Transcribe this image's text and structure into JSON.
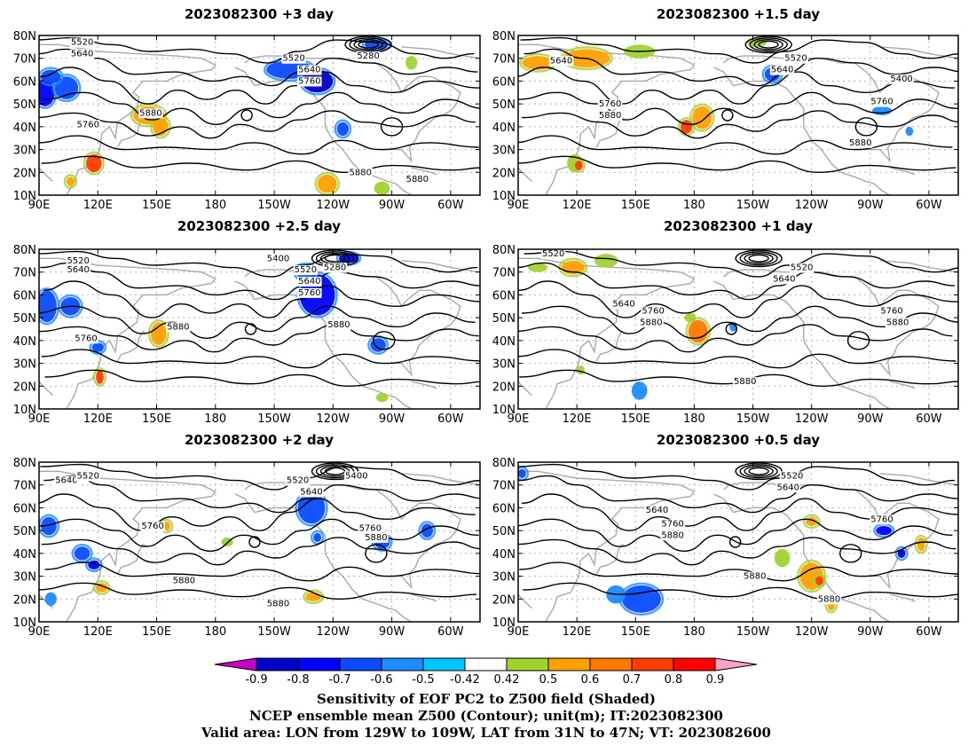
{
  "map_panels": [
    {
      "title": "2023082300  +3 day",
      "contour_labels": [
        {
          "text": "5520",
          "lon": 112,
          "lat": 77
        },
        {
          "text": "5640",
          "lon": 112,
          "lat": 72
        },
        {
          "text": "5280",
          "lon": 258,
          "lat": 71
        },
        {
          "text": "5520",
          "lon": 220,
          "lat": 70
        },
        {
          "text": "5640",
          "lon": 228,
          "lat": 65
        },
        {
          "text": "5760",
          "lon": 228,
          "lat": 60
        },
        {
          "text": "5880",
          "lon": 147,
          "lat": 46
        },
        {
          "text": "5760",
          "lon": 115,
          "lat": 41
        },
        {
          "text": "5880",
          "lon": 254,
          "lat": 20
        },
        {
          "text": "5880",
          "lon": 283,
          "lat": 17
        }
      ],
      "shading": [
        {
          "lon": 93,
          "lat": 55,
          "rx": 5,
          "ry": 6,
          "level": -0.7
        },
        {
          "lon": 104,
          "lat": 57,
          "rx": 6,
          "ry": 5,
          "level": -0.6
        },
        {
          "lon": 96,
          "lat": 62,
          "rx": 5,
          "ry": 3,
          "level": -0.6
        },
        {
          "lon": 146,
          "lat": 45,
          "rx": 8,
          "ry": 4,
          "level": 0.6
        },
        {
          "lon": 152,
          "lat": 40,
          "rx": 4,
          "ry": 4,
          "level": 0.6
        },
        {
          "lon": 118,
          "lat": 24,
          "rx": 4,
          "ry": 4,
          "level": 0.8
        },
        {
          "lon": 106,
          "lat": 16,
          "rx": 2,
          "ry": 2,
          "level": 0.6
        },
        {
          "lon": 218,
          "lat": 65,
          "rx": 12,
          "ry": 4,
          "level": -0.6
        },
        {
          "lon": 232,
          "lat": 60,
          "rx": 8,
          "ry": 5,
          "level": -0.8
        },
        {
          "lon": 262,
          "lat": 76,
          "rx": 6,
          "ry": 2,
          "level": -0.6
        },
        {
          "lon": 280,
          "lat": 68,
          "rx": 3,
          "ry": 3,
          "level": 0.5
        },
        {
          "lon": 245,
          "lat": 39,
          "rx": 3,
          "ry": 3,
          "level": -0.6
        },
        {
          "lon": 237,
          "lat": 15,
          "rx": 5,
          "ry": 4,
          "level": 0.6
        },
        {
          "lon": 265,
          "lat": 13,
          "rx": 4,
          "ry": 3,
          "level": 0.5
        }
      ]
    },
    {
      "title": "2023082300  +1.5 day",
      "contour_labels": [
        {
          "text": "5640",
          "lon": 112,
          "lat": 69
        },
        {
          "text": "5520",
          "lon": 232,
          "lat": 70
        },
        {
          "text": "5640",
          "lon": 225,
          "lat": 65
        },
        {
          "text": "5400",
          "lon": 286,
          "lat": 61
        },
        {
          "text": "5760",
          "lon": 137,
          "lat": 50
        },
        {
          "text": "5880",
          "lon": 137,
          "lat": 45
        },
        {
          "text": "5760",
          "lon": 276,
          "lat": 51
        },
        {
          "text": "5880",
          "lon": 265,
          "lat": 33
        }
      ],
      "shading": [
        {
          "lon": 100,
          "lat": 68,
          "rx": 8,
          "ry": 3,
          "level": 0.6
        },
        {
          "lon": 125,
          "lat": 70,
          "rx": 12,
          "ry": 4,
          "level": 0.6
        },
        {
          "lon": 152,
          "lat": 73,
          "rx": 8,
          "ry": 3,
          "level": 0.5
        },
        {
          "lon": 184,
          "lat": 44,
          "rx": 5,
          "ry": 5,
          "level": 0.6
        },
        {
          "lon": 176,
          "lat": 40,
          "rx": 3,
          "ry": 3,
          "level": 0.8
        },
        {
          "lon": 119,
          "lat": 24,
          "rx": 4,
          "ry": 4,
          "level": 0.5
        },
        {
          "lon": 121,
          "lat": 23,
          "rx": 2,
          "ry": 2,
          "level": 0.8
        },
        {
          "lon": 220,
          "lat": 63,
          "rx": 4,
          "ry": 3,
          "level": -0.6
        },
        {
          "lon": 276,
          "lat": 47,
          "rx": 5,
          "ry": 2,
          "level": -0.5
        },
        {
          "lon": 212,
          "lat": 77,
          "rx": 5,
          "ry": 2,
          "level": 0.5
        },
        {
          "lon": 290,
          "lat": 38,
          "rx": 2,
          "ry": 2,
          "level": -0.5
        }
      ]
    },
    {
      "title": "2023082300  +2.5 day",
      "contour_labels": [
        {
          "text": "5520",
          "lon": 110,
          "lat": 75
        },
        {
          "text": "5640",
          "lon": 110,
          "lat": 71
        },
        {
          "text": "5400",
          "lon": 212,
          "lat": 76
        },
        {
          "text": "5280",
          "lon": 241,
          "lat": 72
        },
        {
          "text": "5520",
          "lon": 226,
          "lat": 71
        },
        {
          "text": "5640",
          "lon": 228,
          "lat": 66
        },
        {
          "text": "5760",
          "lon": 228,
          "lat": 61
        },
        {
          "text": "5880",
          "lon": 243,
          "lat": 47
        },
        {
          "text": "5880",
          "lon": 161,
          "lat": 46
        },
        {
          "text": "5760",
          "lon": 114,
          "lat": 41
        }
      ],
      "shading": [
        {
          "lon": 94,
          "lat": 55,
          "rx": 5,
          "ry": 7,
          "level": -0.6
        },
        {
          "lon": 106,
          "lat": 55,
          "rx": 5,
          "ry": 4,
          "level": -0.6
        },
        {
          "lon": 120,
          "lat": 37,
          "rx": 3,
          "ry": 2,
          "level": -0.6
        },
        {
          "lon": 121,
          "lat": 24,
          "rx": 2,
          "ry": 3,
          "level": 0.8
        },
        {
          "lon": 151,
          "lat": 43,
          "rx": 4,
          "ry": 5,
          "level": 0.6
        },
        {
          "lon": 232,
          "lat": 60,
          "rx": 9,
          "ry": 9,
          "level": -0.7
        },
        {
          "lon": 226,
          "lat": 70,
          "rx": 5,
          "ry": 3,
          "level": -0.6
        },
        {
          "lon": 248,
          "lat": 76,
          "rx": 5,
          "ry": 2,
          "level": -0.7
        },
        {
          "lon": 263,
          "lat": 38,
          "rx": 4,
          "ry": 3,
          "level": -0.6
        },
        {
          "lon": 265,
          "lat": 15,
          "rx": 3,
          "ry": 2,
          "level": 0.5
        }
      ]
    },
    {
      "title": "2023082300  +1  day",
      "contour_labels": [
        {
          "text": "5520",
          "lon": 108,
          "lat": 78
        },
        {
          "text": "5520",
          "lon": 235,
          "lat": 72
        },
        {
          "text": "5640",
          "lon": 226,
          "lat": 67
        },
        {
          "text": "5640",
          "lon": 144,
          "lat": 56
        },
        {
          "text": "5760",
          "lon": 159,
          "lat": 53
        },
        {
          "text": "5880",
          "lon": 158,
          "lat": 48
        },
        {
          "text": "5760",
          "lon": 281,
          "lat": 53
        },
        {
          "text": "5880",
          "lon": 284,
          "lat": 48
        },
        {
          "text": "5880",
          "lon": 206,
          "lat": 22
        }
      ],
      "shading": [
        {
          "lon": 100,
          "lat": 72,
          "rx": 5,
          "ry": 2,
          "level": 0.5
        },
        {
          "lon": 118,
          "lat": 72,
          "rx": 6,
          "ry": 3,
          "level": 0.6
        },
        {
          "lon": 135,
          "lat": 75,
          "rx": 6,
          "ry": 3,
          "level": 0.5
        },
        {
          "lon": 182,
          "lat": 44,
          "rx": 5,
          "ry": 5,
          "level": 0.7
        },
        {
          "lon": 178,
          "lat": 50,
          "rx": 3,
          "ry": 2,
          "level": 0.5
        },
        {
          "lon": 152,
          "lat": 18,
          "rx": 4,
          "ry": 4,
          "level": -0.5
        },
        {
          "lon": 122,
          "lat": 27,
          "rx": 2,
          "ry": 2,
          "level": 0.5
        },
        {
          "lon": 200,
          "lat": 46,
          "rx": 2,
          "ry": 2,
          "level": -0.5
        }
      ]
    },
    {
      "title": "2023082300  +2  day",
      "contour_labels": [
        {
          "text": "5640",
          "lon": 104,
          "lat": 72
        },
        {
          "text": "5520",
          "lon": 115,
          "lat": 74
        },
        {
          "text": "5520",
          "lon": 222,
          "lat": 72
        },
        {
          "text": "5640",
          "lon": 229,
          "lat": 67
        },
        {
          "text": "5400",
          "lon": 252,
          "lat": 74
        },
        {
          "text": "5760",
          "lon": 148,
          "lat": 52
        },
        {
          "text": "5760",
          "lon": 259,
          "lat": 51
        },
        {
          "text": "5880",
          "lon": 262,
          "lat": 47
        },
        {
          "text": "5880",
          "lon": 164,
          "lat": 28
        },
        {
          "text": "5880",
          "lon": 212,
          "lat": 18
        }
      ],
      "shading": [
        {
          "lon": 95,
          "lat": 52,
          "rx": 4,
          "ry": 4,
          "level": -0.6
        },
        {
          "lon": 112,
          "lat": 40,
          "rx": 4,
          "ry": 3,
          "level": -0.6
        },
        {
          "lon": 118,
          "lat": 35,
          "rx": 3,
          "ry": 2,
          "level": -0.7
        },
        {
          "lon": 122,
          "lat": 25,
          "rx": 3,
          "ry": 2,
          "level": 0.6
        },
        {
          "lon": 96,
          "lat": 20,
          "rx": 3,
          "ry": 3,
          "level": -0.5
        },
        {
          "lon": 229,
          "lat": 60,
          "rx": 7,
          "ry": 7,
          "level": -0.6
        },
        {
          "lon": 232,
          "lat": 47,
          "rx": 2,
          "ry": 2,
          "level": -0.6
        },
        {
          "lon": 186,
          "lat": 45,
          "rx": 3,
          "ry": 2,
          "level": 0.5
        },
        {
          "lon": 265,
          "lat": 45,
          "rx": 4,
          "ry": 3,
          "level": -0.6
        },
        {
          "lon": 288,
          "lat": 50,
          "rx": 3,
          "ry": 3,
          "level": -0.6
        },
        {
          "lon": 230,
          "lat": 21,
          "rx": 4,
          "ry": 2,
          "level": 0.6
        },
        {
          "lon": 155,
          "lat": 52,
          "rx": 2,
          "ry": 2,
          "level": 0.6
        }
      ]
    },
    {
      "title": "2023082300  +0.5 day",
      "contour_labels": [
        {
          "text": "5520",
          "lon": 230,
          "lat": 74
        },
        {
          "text": "5640",
          "lon": 228,
          "lat": 69
        },
        {
          "text": "5640",
          "lon": 161,
          "lat": 59
        },
        {
          "text": "5760",
          "lon": 169,
          "lat": 53
        },
        {
          "text": "5880",
          "lon": 169,
          "lat": 48
        },
        {
          "text": "5760",
          "lon": 276,
          "lat": 55
        },
        {
          "text": "5880",
          "lon": 211,
          "lat": 30
        },
        {
          "text": "5880",
          "lon": 249,
          "lat": 20
        }
      ],
      "shading": [
        {
          "lon": 153,
          "lat": 20,
          "rx": 10,
          "ry": 6,
          "level": -0.6
        },
        {
          "lon": 140,
          "lat": 22,
          "rx": 5,
          "ry": 4,
          "level": -0.5
        },
        {
          "lon": 240,
          "lat": 30,
          "rx": 6,
          "ry": 6,
          "level": 0.6
        },
        {
          "lon": 244,
          "lat": 28,
          "rx": 2,
          "ry": 2,
          "level": 0.8
        },
        {
          "lon": 225,
          "lat": 38,
          "rx": 4,
          "ry": 4,
          "level": 0.5
        },
        {
          "lon": 250,
          "lat": 18,
          "rx": 2,
          "ry": 3,
          "level": 0.6
        },
        {
          "lon": 277,
          "lat": 50,
          "rx": 4,
          "ry": 2,
          "level": -0.7
        },
        {
          "lon": 286,
          "lat": 40,
          "rx": 2,
          "ry": 2,
          "level": -0.8
        },
        {
          "lon": 92,
          "lat": 75,
          "rx": 2,
          "ry": 2,
          "level": -0.6
        },
        {
          "lon": 240,
          "lat": 54,
          "rx": 3,
          "ry": 2,
          "level": 0.6
        },
        {
          "lon": 296,
          "lat": 44,
          "rx": 2,
          "ry": 3,
          "level": 0.6
        }
      ]
    }
  ],
  "axes": {
    "lon_ticks": [
      "90E",
      "120E",
      "150E",
      "180",
      "150W",
      "120W",
      "90W",
      "60W"
    ],
    "lat_ticks": [
      "10N",
      "20N",
      "30N",
      "40N",
      "50N",
      "60N",
      "70N",
      "80N"
    ]
  },
  "colorbar": {
    "labels": [
      "-0.9",
      "-0.8",
      "-0.7",
      "-0.6",
      "-0.5",
      "-0.42",
      "0.42",
      "0.5",
      "0.6",
      "0.7",
      "0.8",
      "0.9"
    ],
    "levels": [
      {
        "level": -0.9,
        "color": "#c800c8"
      },
      {
        "level": -0.8,
        "color": "#0000c8"
      },
      {
        "level": -0.7,
        "color": "#0000ff"
      },
      {
        "level": -0.6,
        "color": "#0a4bff"
      },
      {
        "level": -0.5,
        "color": "#1e8cff"
      },
      {
        "level": -0.42,
        "color": "#00c8ff"
      },
      {
        "level": 0,
        "color": "#ffffff"
      },
      {
        "level": 0.5,
        "color": "#a0d232"
      },
      {
        "level": 0.6,
        "color": "#ffa000"
      },
      {
        "level": 0.7,
        "color": "#ff7800"
      },
      {
        "level": 0.8,
        "color": "#ff3c00"
      },
      {
        "level": 0.9,
        "color": "#ff0000"
      },
      {
        "level": 1.0,
        "color": "#ffa0c8"
      }
    ]
  },
  "caption": {
    "line1": "Sensitivity of EOF PC2 to Z500 field (Shaded)",
    "line2": "NCEP ensemble mean Z500 (Contour); unit(m); IT:2023082300",
    "line3": "Valid area: LON from 129W to 109W, LAT from 31N to 47N; VT: 2023082600"
  }
}
